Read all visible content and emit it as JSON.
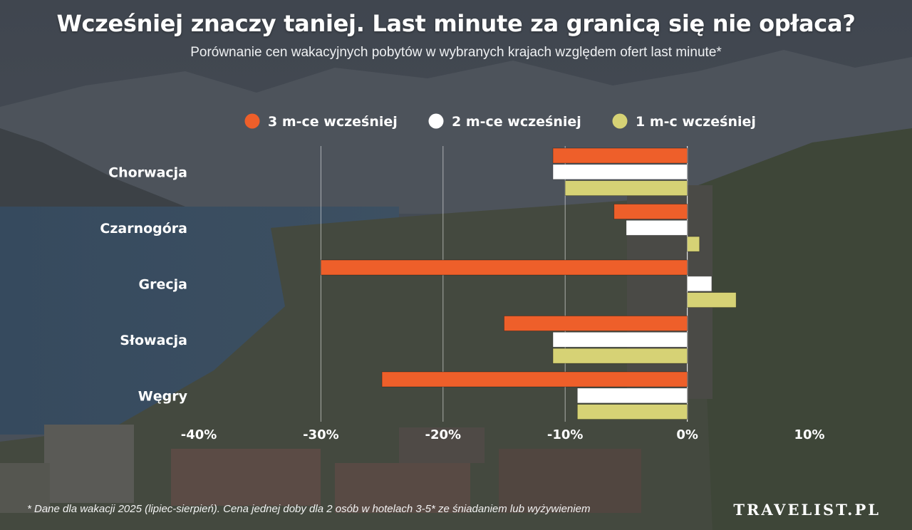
{
  "header": {
    "title": "Wcześniej znaczy taniej. Last minute za granicą się nie opłaca?",
    "subtitle": "Porównanie cen wakacyjnych pobytów w wybranych krajach względem ofert last minute*"
  },
  "footer": {
    "footnote": "* Dane dla wakacji 2025 (lipiec-sierpień). Cena jednej doby dla 2 osób w hotelach 3-5* ze śniadaniem lub wyżywieniem",
    "brand": "TRAVELIST.PL"
  },
  "chart_data": {
    "type": "bar",
    "orientation": "horizontal",
    "title": "Wcześniej znaczy taniej. Last minute za granicą się nie opłaca?",
    "categories": [
      "Chorwacja",
      "Czarnogóra",
      "Grecja",
      "Słowacja",
      "Węgry"
    ],
    "series": [
      {
        "name": "3 m-ce wcześniej",
        "color": "#ee5f2a",
        "values": [
          -11,
          -6,
          -30,
          -15,
          -25
        ]
      },
      {
        "name": "2 m-ce wcześniej",
        "color": "#ffffff",
        "values": [
          -11,
          -5,
          2,
          -11,
          -9
        ]
      },
      {
        "name": "1 m-c wcześniej",
        "color": "#d6d275",
        "values": [
          -10,
          1,
          4,
          -11,
          -9
        ]
      }
    ],
    "xlim": [
      -40,
      10
    ],
    "xticks": [
      -40,
      -30,
      -20,
      -10,
      0,
      10
    ],
    "xtick_labels": [
      "-40%",
      "-30%",
      "-20%",
      "-10%",
      "0%",
      "10%"
    ],
    "grid": "vertical",
    "legend_position": "top"
  }
}
